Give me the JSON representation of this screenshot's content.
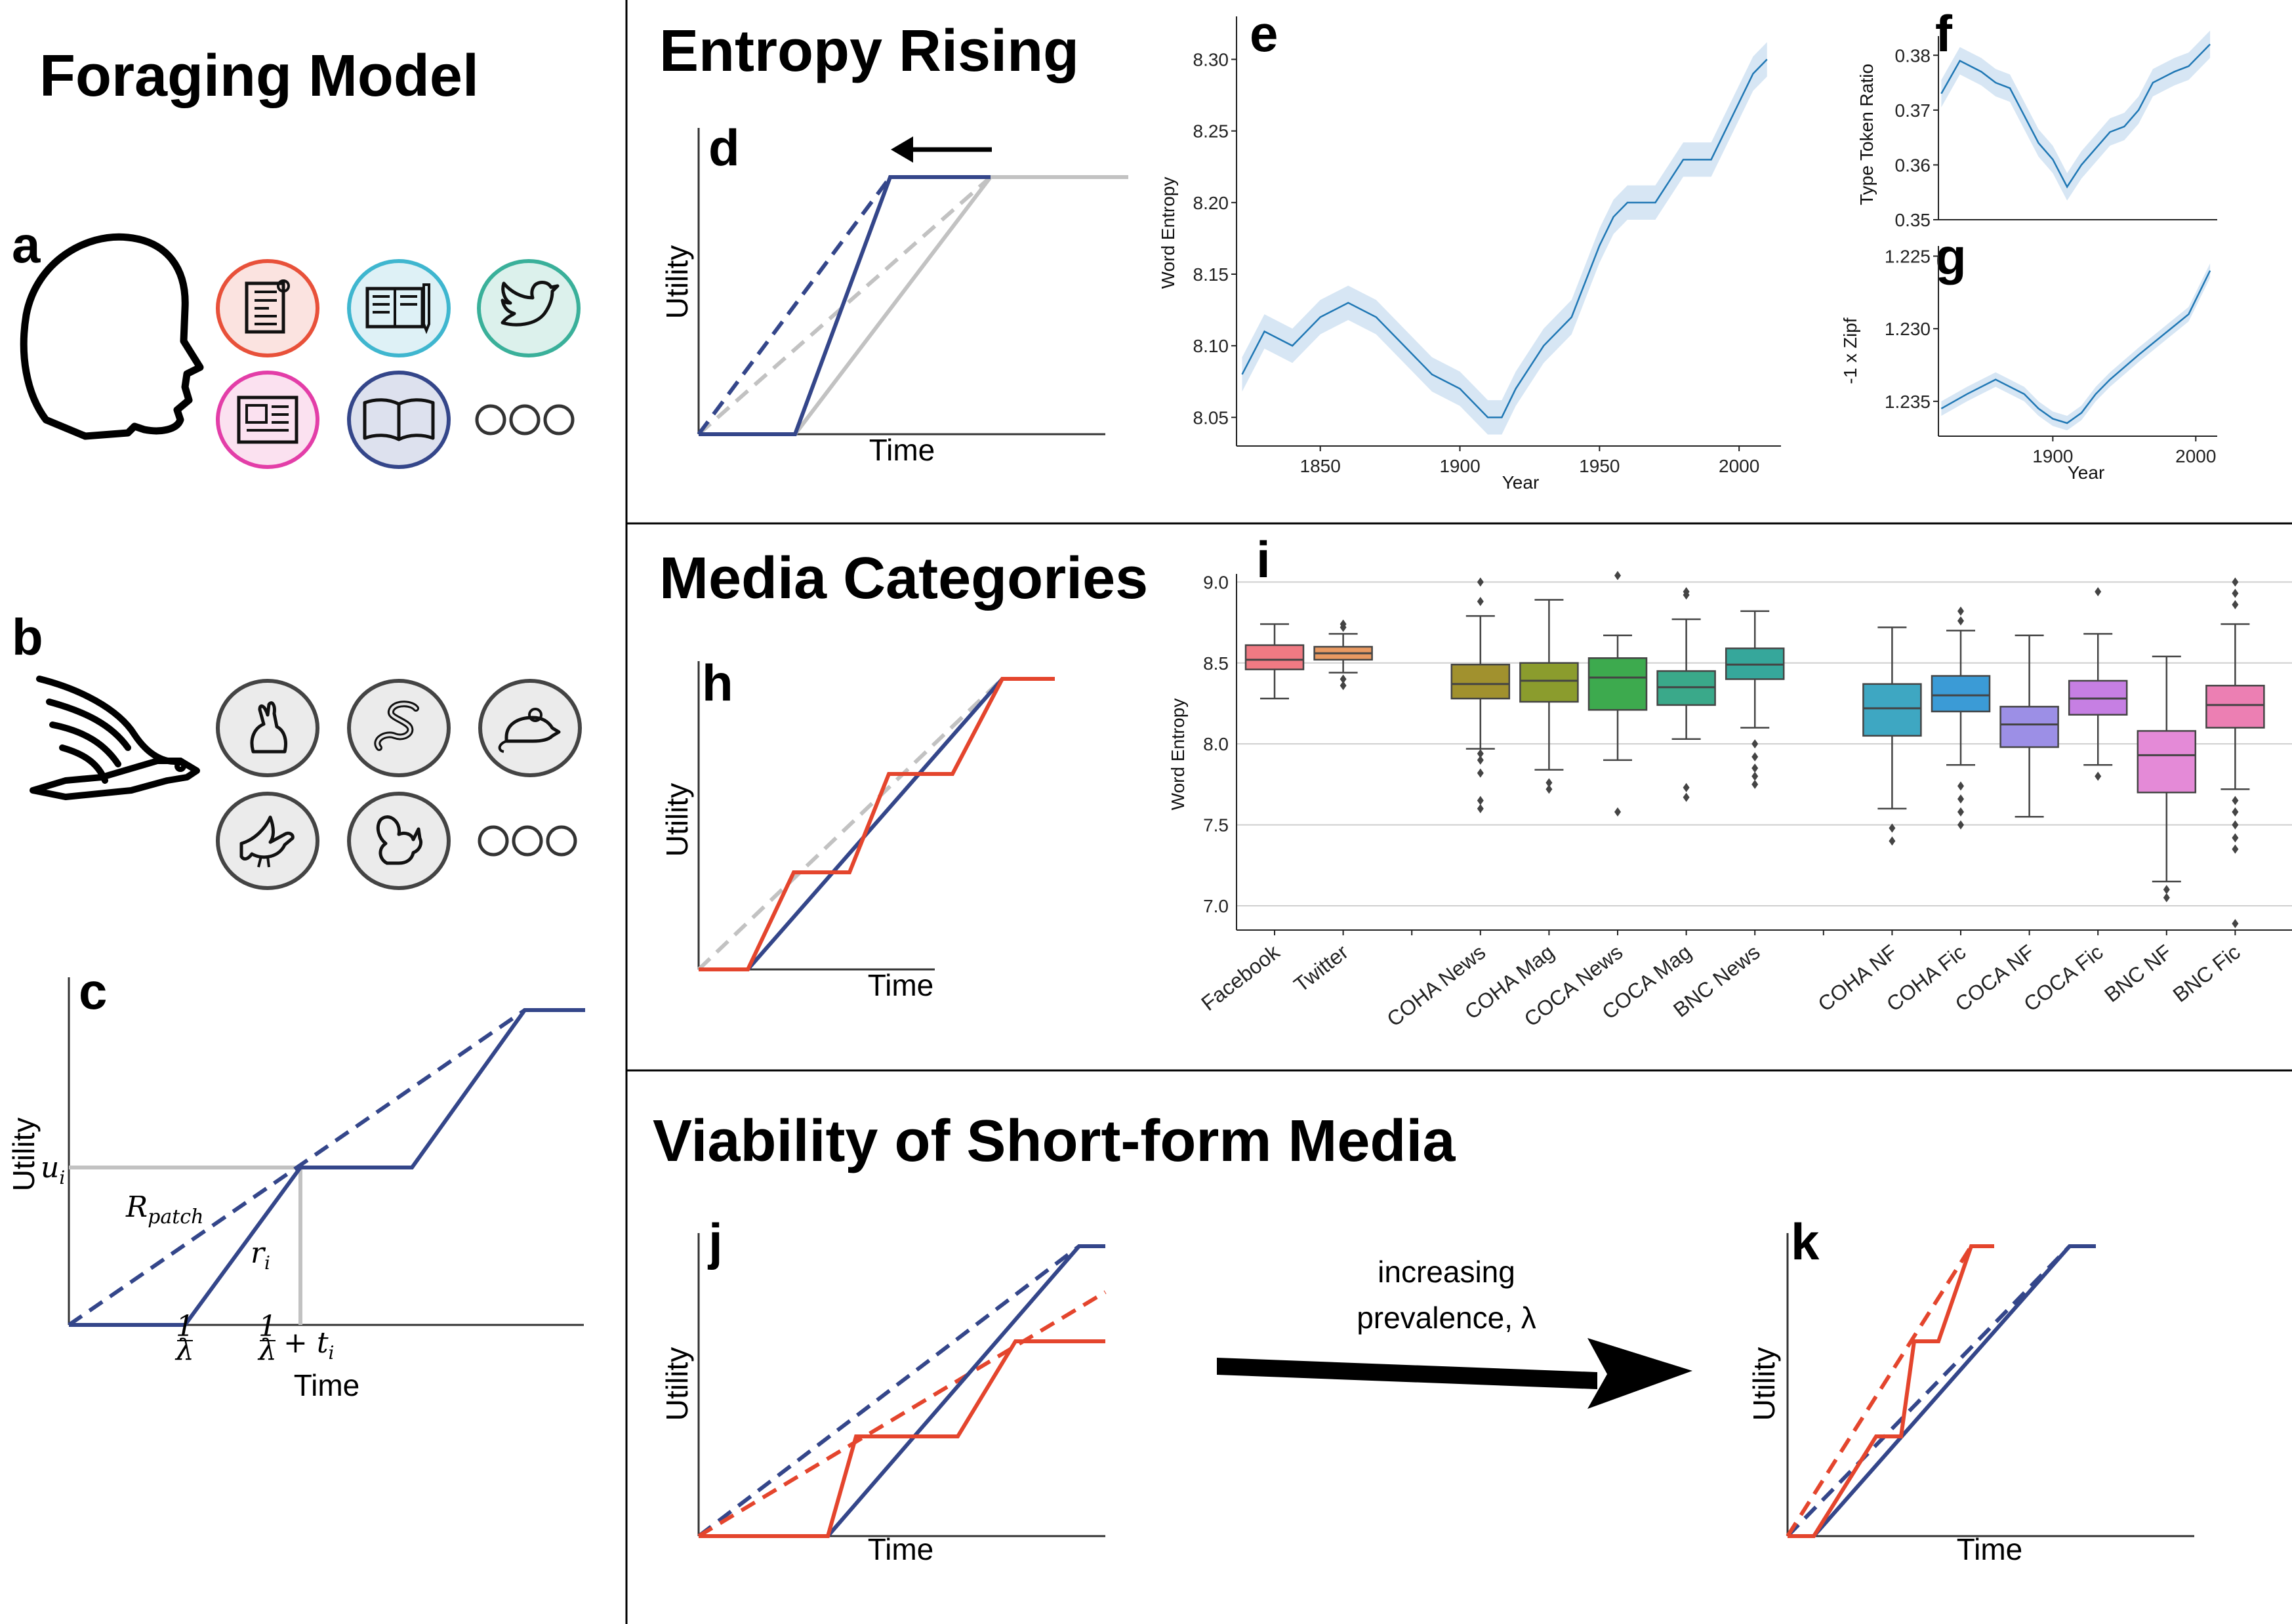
{
  "sections": {
    "foraging": "Foraging Model",
    "entropy": "Entropy Rising",
    "media": "Media Categories",
    "viability": "Viability of Short-form Media"
  },
  "panels": {
    "a": "a",
    "b": "b",
    "c": "c",
    "d": "d",
    "e": "e",
    "f": "f",
    "g": "g",
    "h": "h",
    "i": "i",
    "j": "j",
    "k": "k"
  },
  "axis": {
    "utility": "Utility",
    "time": "Time",
    "year": "Year"
  },
  "panel_a": {
    "icons": [
      {
        "name": "newspaper-scroll-icon",
        "color": "#e8513a",
        "fill": "#fbe3e0"
      },
      {
        "name": "study-book-icon",
        "color": "#3fb6cf",
        "fill": "#def1f6"
      },
      {
        "name": "twitter-bird-icon",
        "color": "#3ab09a",
        "fill": "#dcf1ec"
      },
      {
        "name": "news-article-icon",
        "color": "#e33ea8",
        "fill": "#fbe1f0"
      },
      {
        "name": "open-book-icon",
        "color": "#34468a",
        "fill": "#dde1ee"
      }
    ]
  },
  "panel_b": {
    "icons": [
      "rabbit-icon",
      "snake-icon",
      "mouse-icon",
      "bird-icon",
      "squirrel-icon"
    ]
  },
  "panel_c": {
    "u_label": "u",
    "u_sub": "i",
    "r_patch": "R",
    "r_patch_sub": "patch",
    "r_i": "r",
    "r_i_sub": "i",
    "tick1_num": "1",
    "tick1_den": "λ",
    "tick2_suffix": "+ t",
    "tick2_sub": "i"
  },
  "colors": {
    "blue": "#34468a",
    "red": "#e4452d",
    "gray": "#c2c2c2",
    "series": "#1f77b4",
    "band": "#c6dbef"
  },
  "chart_data": [
    {
      "id": "e",
      "type": "line",
      "xlabel": "Year",
      "ylabel": "Word Entropy",
      "xlim": [
        1820,
        2015
      ],
      "ylim": [
        8.03,
        8.33
      ],
      "xticks": [
        1850,
        1900,
        1950,
        2000
      ],
      "yticks": [
        8.05,
        8.1,
        8.15,
        8.2,
        8.25,
        8.3
      ],
      "x": [
        1822,
        1830,
        1840,
        1850,
        1860,
        1870,
        1880,
        1890,
        1900,
        1905,
        1910,
        1915,
        1920,
        1930,
        1940,
        1950,
        1955,
        1960,
        1970,
        1980,
        1990,
        2000,
        2005,
        2010
      ],
      "y": [
        8.08,
        8.11,
        8.1,
        8.12,
        8.13,
        8.12,
        8.1,
        8.08,
        8.07,
        8.06,
        8.05,
        8.05,
        8.07,
        8.1,
        8.12,
        8.17,
        8.19,
        8.2,
        8.2,
        8.23,
        8.23,
        8.27,
        8.29,
        8.3
      ],
      "band": 0.012
    },
    {
      "id": "f",
      "type": "line",
      "xlabel": "",
      "ylabel": "Type Token Ratio",
      "xlim": [
        1820,
        2015
      ],
      "ylim": [
        0.35,
        0.3835
      ],
      "yticks": [
        0.35,
        0.36,
        0.37,
        0.38
      ],
      "x": [
        1822,
        1835,
        1850,
        1860,
        1870,
        1880,
        1890,
        1900,
        1910,
        1920,
        1930,
        1940,
        1950,
        1960,
        1970,
        1985,
        1995,
        2010
      ],
      "y": [
        0.373,
        0.379,
        0.377,
        0.375,
        0.374,
        0.369,
        0.364,
        0.361,
        0.356,
        0.36,
        0.363,
        0.366,
        0.367,
        0.37,
        0.375,
        0.377,
        0.378,
        0.382
      ],
      "band": 0.0025
    },
    {
      "id": "g",
      "type": "line",
      "xlabel": "Year",
      "ylabel": "-1 x Zipf",
      "xlim": [
        1820,
        2015
      ],
      "ylim": [
        1.2374,
        1.2243
      ],
      "xticks": [
        1900,
        2000
      ],
      "yticks": [
        1.225,
        1.23,
        1.235
      ],
      "x": [
        1822,
        1840,
        1860,
        1880,
        1890,
        1900,
        1910,
        1920,
        1930,
        1940,
        1960,
        1980,
        1995,
        2005,
        2010
      ],
      "y": [
        1.2355,
        1.2345,
        1.2335,
        1.2345,
        1.2355,
        1.2362,
        1.2365,
        1.2358,
        1.2345,
        1.2335,
        1.2318,
        1.2302,
        1.229,
        1.227,
        1.226
      ],
      "band": 0.0005
    },
    {
      "id": "i",
      "type": "box",
      "ylabel": "Word Entropy",
      "ylim": [
        6.85,
        9.05
      ],
      "yticks": [
        7.0,
        7.5,
        8.0,
        8.5,
        9.0
      ],
      "categories": [
        "Facebook",
        "Twitter",
        "",
        "COHA News",
        "COHA Mag",
        "COCA News",
        "COCA Mag",
        "BNC News",
        "",
        "COHA NF",
        "COHA Fic",
        "COCA NF",
        "COCA Fic",
        "BNC NF",
        "BNC Fic"
      ],
      "boxes": [
        {
          "label": "Facebook",
          "color": "#f07a83",
          "q1": 8.46,
          "med": 8.52,
          "q3": 8.61,
          "lo": 8.28,
          "hi": 8.74,
          "out": []
        },
        {
          "label": "Twitter",
          "color": "#e99a62",
          "q1": 8.52,
          "med": 8.56,
          "q3": 8.6,
          "lo": 8.44,
          "hi": 8.68,
          "out": [
            8.36,
            8.4,
            8.72,
            8.74
          ]
        },
        {
          "label": "COHA News",
          "color": "#a1912e",
          "q1": 8.28,
          "med": 8.37,
          "q3": 8.49,
          "lo": 7.97,
          "hi": 8.79,
          "out": [
            7.6,
            7.65,
            7.82,
            7.9,
            7.94,
            8.88,
            9.0
          ]
        },
        {
          "label": "COHA Mag",
          "color": "#8b9c2d",
          "q1": 8.26,
          "med": 8.39,
          "q3": 8.5,
          "lo": 7.84,
          "hi": 8.89,
          "out": [
            7.72,
            7.76
          ]
        },
        {
          "label": "COCA News",
          "color": "#3daa4e",
          "q1": 8.21,
          "med": 8.41,
          "q3": 8.53,
          "lo": 7.9,
          "hi": 8.67,
          "out": [
            7.58,
            9.04
          ]
        },
        {
          "label": "COCA Mag",
          "color": "#3aa98a",
          "q1": 8.24,
          "med": 8.35,
          "q3": 8.45,
          "lo": 8.03,
          "hi": 8.77,
          "out": [
            7.67,
            7.73,
            8.92,
            8.94
          ]
        },
        {
          "label": "BNC News",
          "color": "#36a79b",
          "q1": 8.4,
          "med": 8.49,
          "q3": 8.59,
          "lo": 8.1,
          "hi": 8.82,
          "out": [
            7.75,
            7.8,
            7.85,
            7.92,
            8.0
          ]
        },
        {
          "label": "COHA NF",
          "color": "#3ea7c2",
          "q1": 8.05,
          "med": 8.22,
          "q3": 8.37,
          "lo": 7.6,
          "hi": 8.72,
          "out": [
            7.4,
            7.48
          ]
        },
        {
          "label": "COHA Fic",
          "color": "#3b9bd6",
          "q1": 8.2,
          "med": 8.3,
          "q3": 8.42,
          "lo": 7.87,
          "hi": 8.7,
          "out": [
            7.5,
            7.58,
            7.66,
            7.74,
            8.76,
            8.82
          ]
        },
        {
          "label": "COCA NF",
          "color": "#9c8fe6",
          "q1": 7.98,
          "med": 8.12,
          "q3": 8.23,
          "lo": 7.55,
          "hi": 8.67,
          "out": []
        },
        {
          "label": "COCA Fic",
          "color": "#c67fe3",
          "q1": 8.18,
          "med": 8.28,
          "q3": 8.39,
          "lo": 7.87,
          "hi": 8.68,
          "out": [
            7.8,
            8.94
          ]
        },
        {
          "label": "BNC NF",
          "color": "#e48ad7",
          "q1": 7.7,
          "med": 7.93,
          "q3": 8.08,
          "lo": 7.15,
          "hi": 8.54,
          "out": [
            7.05,
            7.1
          ]
        },
        {
          "label": "BNC Fic",
          "color": "#ec7fb3",
          "q1": 8.1,
          "med": 8.24,
          "q3": 8.36,
          "lo": 7.72,
          "hi": 8.74,
          "out": [
            6.89,
            7.35,
            7.42,
            7.5,
            7.58,
            7.65,
            8.86,
            8.93,
            9.0
          ]
        }
      ]
    }
  ],
  "arrow_label_1": "increasing",
  "arrow_label_2": "prevalence, λ"
}
